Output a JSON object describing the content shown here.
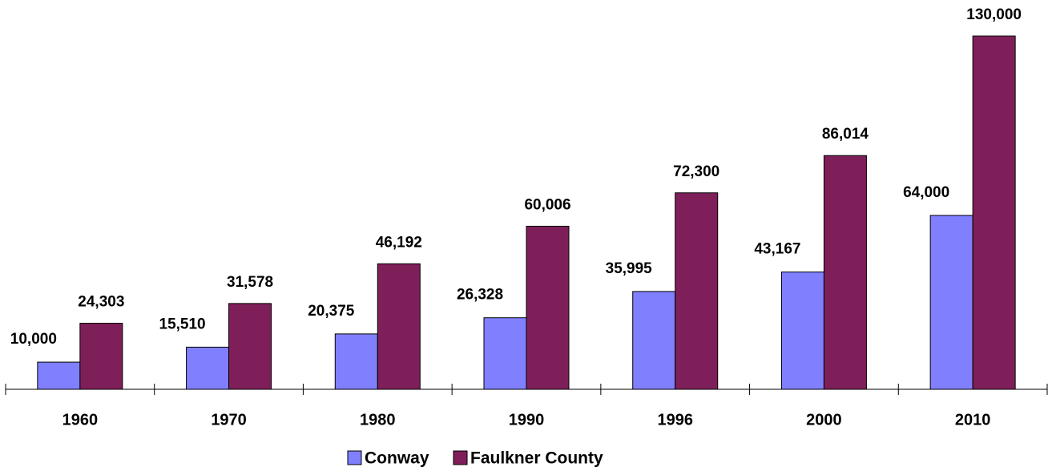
{
  "chart_data": {
    "type": "bar",
    "categories": [
      "1960",
      "1970",
      "1980",
      "1990",
      "1996",
      "2000",
      "2010"
    ],
    "series": [
      {
        "name": "Conway",
        "color": "#8080ff",
        "values": [
          10000,
          15510,
          20375,
          26328,
          35995,
          43167,
          64000
        ],
        "value_labels": [
          "10,000",
          "15,510",
          "20,375",
          "26,328",
          "35,995",
          "43,167",
          "64,000"
        ]
      },
      {
        "name": "Faulkner County",
        "color": "#7f1f5a",
        "values": [
          24303,
          31578,
          46192,
          60006,
          72300,
          86014,
          130000
        ],
        "value_labels": [
          "24,303",
          "31,578",
          "46,192",
          "60,006",
          "72,300",
          "86,014",
          "130,000"
        ]
      }
    ]
  }
}
